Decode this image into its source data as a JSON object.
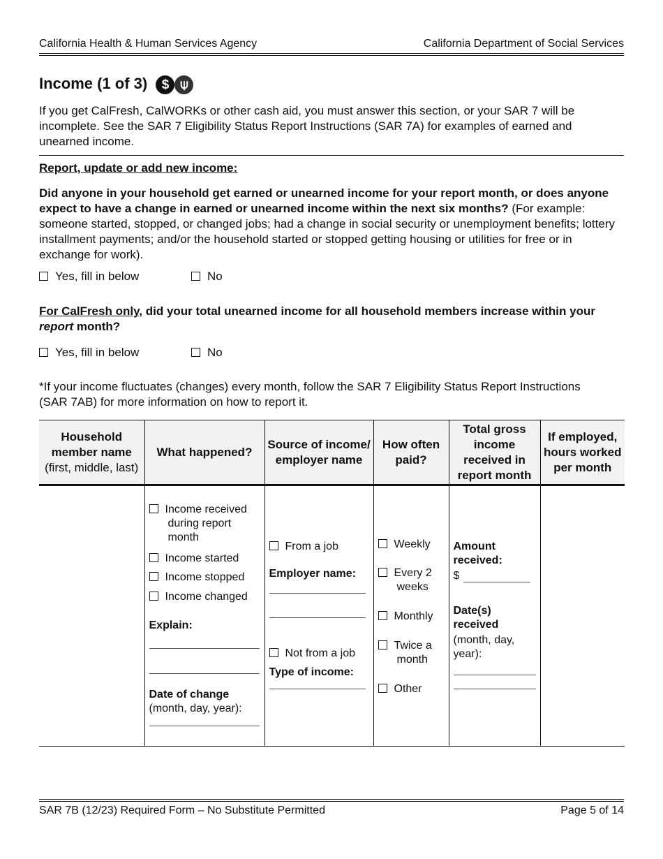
{
  "header": {
    "left": "California Health & Human Services Agency",
    "right": "California Department of Social Services"
  },
  "section": {
    "title": "Income (1 of 3)",
    "icons": [
      "dollar-icon",
      "fork-knife-icon"
    ],
    "intro": "If you get CalFresh, CalWORKs or other cash aid, you must answer this section, or your SAR 7 will be incomplete. See the SAR 7 Eligibility Status Report Instructions (SAR 7A) for examples of earned and unearned income."
  },
  "report_heading": "Report, update or add new income:",
  "q1": {
    "bold": "Did anyone in your household get earned or unearned income for your report month, or does anyone expect to have a change in earned or unearned income within the next six months?",
    "text": "(For example: someone started, stopped, or changed jobs; had a change in social security or unemployment benefits; lottery installment payments; and/or the household started or stopped getting housing or utilities for free or in exchange for work).",
    "yes": "Yes, fill in below",
    "no": "No"
  },
  "q2": {
    "underlined": "For CalFresh only,",
    "bold": " did your total unearned income for all household members increase within your ",
    "italic": "report",
    "end": " month?",
    "yes": "Yes, fill in below",
    "no": "No"
  },
  "note": "*If your income fluctuates (changes) every month, follow the SAR 7 Eligibility Status Report Instructions (SAR 7AB) for more information on how to report it.",
  "table": {
    "headers": {
      "name_bold": "Household member name",
      "name_sub": "(first, middle, last)",
      "what": "What happened?",
      "source": "Source of income/ employer name",
      "often": "How often paid?",
      "gross": "Total gross income received in report month",
      "hours": "If employed, hours worked per month"
    },
    "what": {
      "options": [
        "Income received during report month",
        "Income started",
        "Income stopped",
        "Income changed"
      ],
      "explain": "Explain:",
      "date_label": "Date of change",
      "date_sub": "(month, day, year):"
    },
    "source": {
      "job": "From a job",
      "employer": "Employer name:",
      "notjob": "Not from a job",
      "type": "Type of income:"
    },
    "often": [
      "Weekly",
      "Every 2 weeks",
      "Monthly",
      "Twice a month",
      "Other"
    ],
    "gross": {
      "amount": "Amount received:",
      "dollar": "$",
      "dates": "Date(s) received",
      "dates_sub": "(month, day, year):"
    }
  },
  "footer": {
    "left": "SAR 7B (12/23) Required Form – No Substitute Permitted",
    "right": "Page 5 of 14"
  }
}
